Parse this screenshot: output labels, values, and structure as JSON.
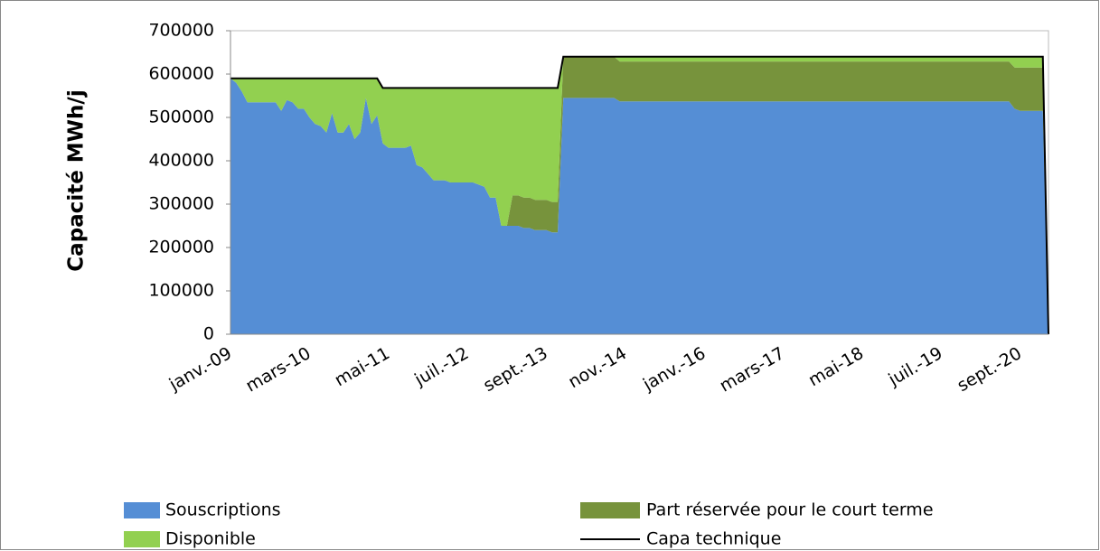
{
  "chart_data": {
    "type": "area",
    "stacked": true,
    "y_label": "Capacité MWh/j",
    "categories": [
      "janv.-09",
      null,
      null,
      null,
      null,
      null,
      null,
      null,
      null,
      null,
      null,
      null,
      null,
      null,
      "mars-10",
      null,
      null,
      null,
      null,
      null,
      null,
      null,
      null,
      null,
      null,
      null,
      null,
      null,
      "mai-11",
      null,
      null,
      null,
      null,
      null,
      null,
      null,
      null,
      null,
      null,
      null,
      null,
      null,
      "juil.-12",
      null,
      null,
      null,
      null,
      null,
      null,
      null,
      null,
      null,
      null,
      null,
      null,
      null,
      "sept.-13",
      null,
      null,
      null,
      null,
      null,
      null,
      null,
      null,
      null,
      null,
      null,
      null,
      null,
      "nov.-14",
      null,
      null,
      null,
      null,
      null,
      null,
      null,
      null,
      null,
      null,
      null,
      null,
      null,
      "janv.-16",
      null,
      null,
      null,
      null,
      null,
      null,
      null,
      null,
      null,
      null,
      null,
      null,
      null,
      "mars-17",
      null,
      null,
      null,
      null,
      null,
      null,
      null,
      null,
      null,
      null,
      null,
      null,
      null,
      "mai-18",
      null,
      null,
      null,
      null,
      null,
      null,
      null,
      null,
      null,
      null,
      null,
      null,
      null,
      "juil.-19",
      null,
      null,
      null,
      null,
      null,
      null,
      null,
      null,
      null,
      null,
      null,
      null,
      null,
      "sept.-20",
      null,
      null,
      null,
      null,
      null
    ],
    "ylim": [
      0,
      700000
    ],
    "yticks": [
      0,
      100000,
      200000,
      300000,
      400000,
      500000,
      600000,
      700000
    ],
    "grid": false,
    "series": [
      {
        "name": "Souscriptions",
        "color": "#558ed5",
        "values": [
          590000,
          580000,
          560000,
          535000,
          535000,
          535000,
          535000,
          535000,
          535000,
          515000,
          540000,
          535000,
          520000,
          520000,
          500000,
          485000,
          480000,
          465000,
          510000,
          465000,
          465000,
          485000,
          450000,
          465000,
          545000,
          485000,
          505000,
          440000,
          430000,
          430000,
          430000,
          430000,
          435000,
          390000,
          385000,
          370000,
          355000,
          355000,
          355000,
          350000,
          350000,
          350000,
          350000,
          350000,
          345000,
          340000,
          315000,
          315000,
          250000,
          250000,
          250000,
          250000,
          245000,
          245000,
          240000,
          240000,
          240000,
          235000,
          235000,
          545000,
          545000,
          545000,
          545000,
          545000,
          545000,
          545000,
          545000,
          545000,
          545000,
          537000,
          537000,
          537000,
          537000,
          537000,
          537000,
          537000,
          537000,
          537000,
          537000,
          537000,
          537000,
          537000,
          537000,
          537000,
          537000,
          537000,
          537000,
          537000,
          537000,
          537000,
          537000,
          537000,
          537000,
          537000,
          537000,
          537000,
          537000,
          537000,
          537000,
          537000,
          537000,
          537000,
          537000,
          537000,
          537000,
          537000,
          537000,
          537000,
          537000,
          537000,
          537000,
          537000,
          537000,
          537000,
          537000,
          537000,
          537000,
          537000,
          537000,
          537000,
          537000,
          537000,
          537000,
          537000,
          537000,
          537000,
          537000,
          537000,
          537000,
          537000,
          537000,
          537000,
          537000,
          537000,
          537000,
          537000,
          537000,
          537000,
          537000,
          520000,
          515000,
          515000,
          515000,
          515000,
          515000,
          0
        ]
      },
      {
        "name": "Part réservée pour le court terme",
        "color": "#77933c",
        "values": [
          0,
          0,
          0,
          0,
          0,
          0,
          0,
          0,
          0,
          0,
          0,
          0,
          0,
          0,
          0,
          0,
          0,
          0,
          0,
          0,
          0,
          0,
          0,
          0,
          0,
          0,
          0,
          0,
          0,
          0,
          0,
          0,
          0,
          0,
          0,
          0,
          0,
          0,
          0,
          0,
          0,
          0,
          0,
          0,
          0,
          0,
          0,
          0,
          0,
          0,
          70000,
          70000,
          70000,
          70000,
          70000,
          70000,
          70000,
          70000,
          70000,
          95000,
          95000,
          95000,
          95000,
          95000,
          95000,
          95000,
          95000,
          95000,
          95000,
          92000,
          92000,
          92000,
          92000,
          92000,
          92000,
          92000,
          92000,
          92000,
          92000,
          92000,
          92000,
          92000,
          92000,
          92000,
          92000,
          92000,
          92000,
          92000,
          92000,
          92000,
          92000,
          92000,
          92000,
          92000,
          92000,
          92000,
          92000,
          92000,
          92000,
          92000,
          92000,
          92000,
          92000,
          92000,
          92000,
          92000,
          92000,
          92000,
          92000,
          92000,
          92000,
          92000,
          92000,
          92000,
          92000,
          92000,
          92000,
          92000,
          92000,
          92000,
          92000,
          92000,
          92000,
          92000,
          92000,
          92000,
          92000,
          92000,
          92000,
          92000,
          92000,
          92000,
          92000,
          92000,
          92000,
          92000,
          92000,
          92000,
          92000,
          95000,
          100000,
          100000,
          100000,
          100000,
          100000,
          0
        ]
      },
      {
        "name": "Disponible",
        "color": "#92d050",
        "values": [
          0,
          10000,
          30000,
          55000,
          55000,
          55000,
          55000,
          55000,
          55000,
          75000,
          50000,
          55000,
          70000,
          70000,
          90000,
          105000,
          110000,
          125000,
          80000,
          125000,
          125000,
          105000,
          140000,
          125000,
          45000,
          105000,
          85000,
          128000,
          138000,
          138000,
          138000,
          138000,
          133000,
          178000,
          183000,
          198000,
          213000,
          213000,
          213000,
          218000,
          218000,
          218000,
          218000,
          218000,
          223000,
          228000,
          253000,
          253000,
          318000,
          318000,
          248000,
          248000,
          253000,
          253000,
          258000,
          258000,
          258000,
          263000,
          263000,
          0,
          0,
          0,
          0,
          0,
          0,
          0,
          0,
          0,
          0,
          11000,
          11000,
          11000,
          11000,
          11000,
          11000,
          11000,
          11000,
          11000,
          11000,
          11000,
          11000,
          11000,
          11000,
          11000,
          11000,
          11000,
          11000,
          11000,
          11000,
          11000,
          11000,
          11000,
          11000,
          11000,
          11000,
          11000,
          11000,
          11000,
          11000,
          11000,
          11000,
          11000,
          11000,
          11000,
          11000,
          11000,
          11000,
          11000,
          11000,
          11000,
          11000,
          11000,
          11000,
          11000,
          11000,
          11000,
          11000,
          11000,
          11000,
          11000,
          11000,
          11000,
          11000,
          11000,
          11000,
          11000,
          11000,
          11000,
          11000,
          11000,
          11000,
          11000,
          11000,
          11000,
          11000,
          11000,
          11000,
          11000,
          11000,
          25000,
          25000,
          25000,
          25000,
          25000,
          25000,
          0
        ]
      },
      {
        "name": "Capa technique",
        "color": "#000000",
        "type": "line",
        "values": [
          590000,
          590000,
          590000,
          590000,
          590000,
          590000,
          590000,
          590000,
          590000,
          590000,
          590000,
          590000,
          590000,
          590000,
          590000,
          590000,
          590000,
          590000,
          590000,
          590000,
          590000,
          590000,
          590000,
          590000,
          590000,
          590000,
          590000,
          568000,
          568000,
          568000,
          568000,
          568000,
          568000,
          568000,
          568000,
          568000,
          568000,
          568000,
          568000,
          568000,
          568000,
          568000,
          568000,
          568000,
          568000,
          568000,
          568000,
          568000,
          568000,
          568000,
          568000,
          568000,
          568000,
          568000,
          568000,
          568000,
          568000,
          568000,
          568000,
          640000,
          640000,
          640000,
          640000,
          640000,
          640000,
          640000,
          640000,
          640000,
          640000,
          640000,
          640000,
          640000,
          640000,
          640000,
          640000,
          640000,
          640000,
          640000,
          640000,
          640000,
          640000,
          640000,
          640000,
          640000,
          640000,
          640000,
          640000,
          640000,
          640000,
          640000,
          640000,
          640000,
          640000,
          640000,
          640000,
          640000,
          640000,
          640000,
          640000,
          640000,
          640000,
          640000,
          640000,
          640000,
          640000,
          640000,
          640000,
          640000,
          640000,
          640000,
          640000,
          640000,
          640000,
          640000,
          640000,
          640000,
          640000,
          640000,
          640000,
          640000,
          640000,
          640000,
          640000,
          640000,
          640000,
          640000,
          640000,
          640000,
          640000,
          640000,
          640000,
          640000,
          640000,
          640000,
          640000,
          640000,
          640000,
          640000,
          640000,
          640000,
          640000,
          640000,
          640000,
          640000,
          640000,
          0
        ]
      }
    ]
  }
}
